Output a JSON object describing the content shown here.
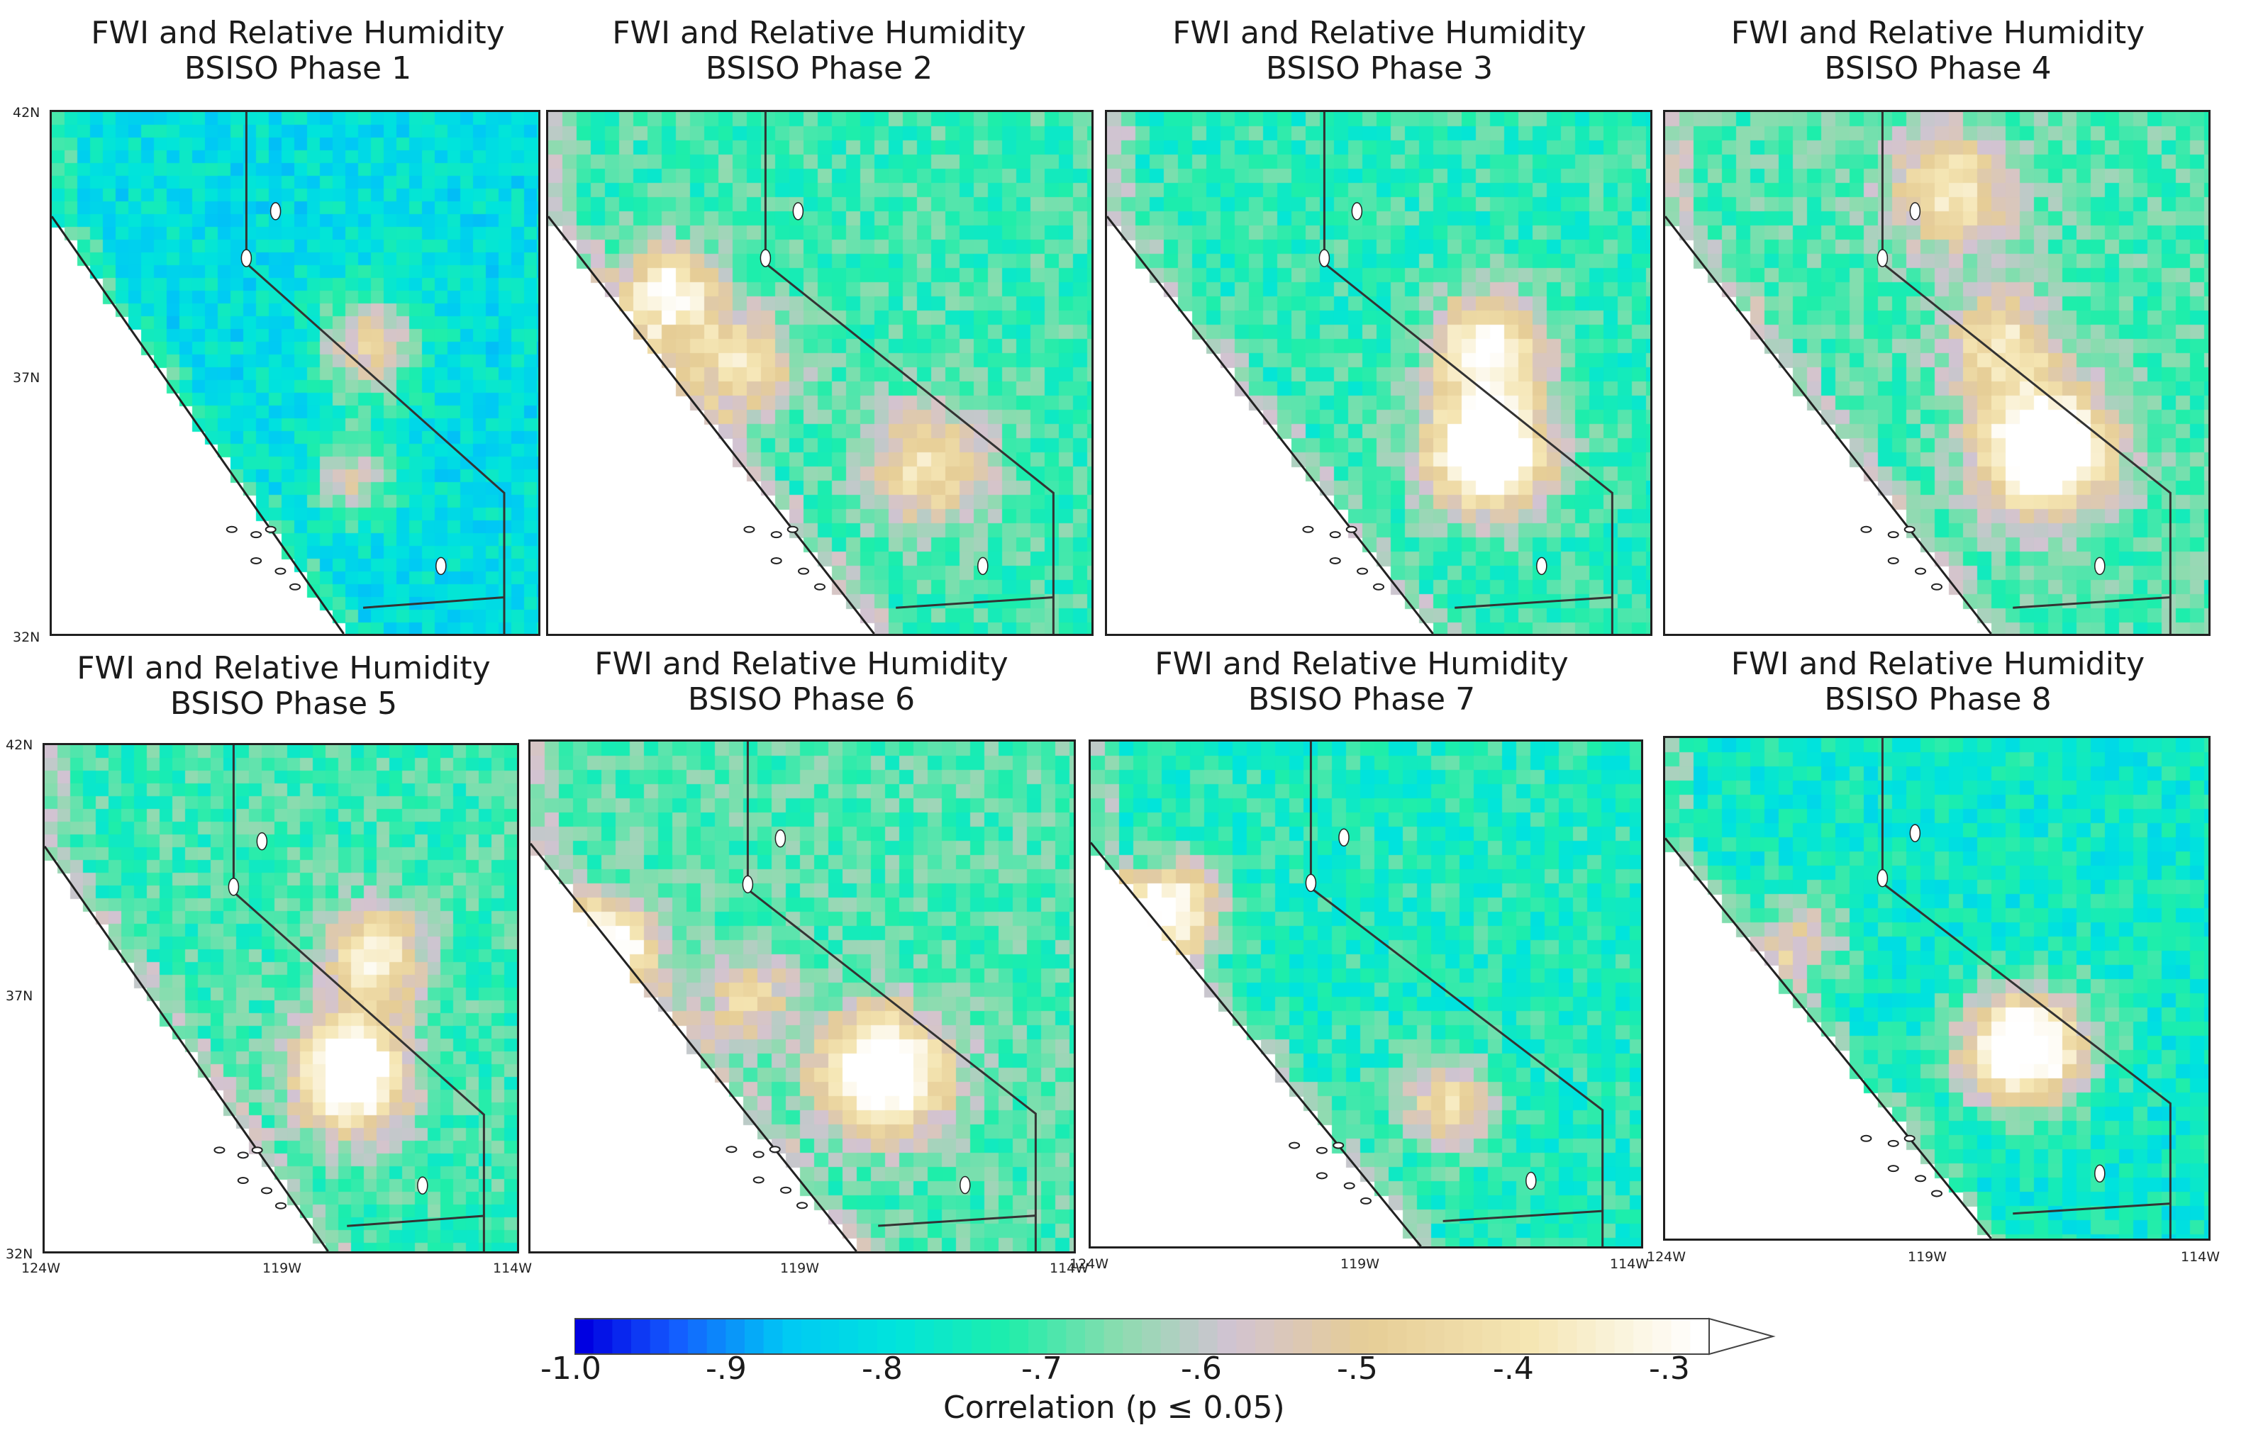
{
  "panels": [
    {
      "title1": "FWI and Relative Humidity",
      "title2": "BSISO Phase 1"
    },
    {
      "title1": "FWI and Relative Humidity",
      "title2": "BSISO Phase 2"
    },
    {
      "title1": "FWI and Relative Humidity",
      "title2": "BSISO Phase 3"
    },
    {
      "title1": "FWI and Relative Humidity",
      "title2": "BSISO Phase 4"
    },
    {
      "title1": "FWI and Relative Humidity",
      "title2": "BSISO Phase 5"
    },
    {
      "title1": "FWI and Relative Humidity",
      "title2": "BSISO Phase 6"
    },
    {
      "title1": "FWI and Relative Humidity",
      "title2": "BSISO Phase 7"
    },
    {
      "title1": "FWI and Relative Humidity",
      "title2": "BSISO Phase 8"
    }
  ],
  "axes": {
    "lat_ticks": [
      "42N",
      "37N",
      "32N"
    ],
    "lon_ticks": [
      "124W",
      "119W",
      "114W"
    ]
  },
  "colorbar": {
    "label": "Correlation (p ≤ 0.05)",
    "ticks": [
      "-1.0",
      "-.9",
      "-.8",
      "-.7",
      "-.6",
      "-.5",
      "-.4",
      "-.3"
    ],
    "range": [
      -1.0,
      -0.3
    ],
    "extend": "max",
    "colors": [
      "#0000e0",
      "#1e73ff",
      "#00d8f0",
      "#00e6c8",
      "#20f0a0",
      "#a8dcb4",
      "#d8c0d0",
      "#e8d098",
      "#f6eab8",
      "#ffffff"
    ]
  },
  "map": {
    "land_color": "#ffffff",
    "boundary_color": "#202020"
  }
}
